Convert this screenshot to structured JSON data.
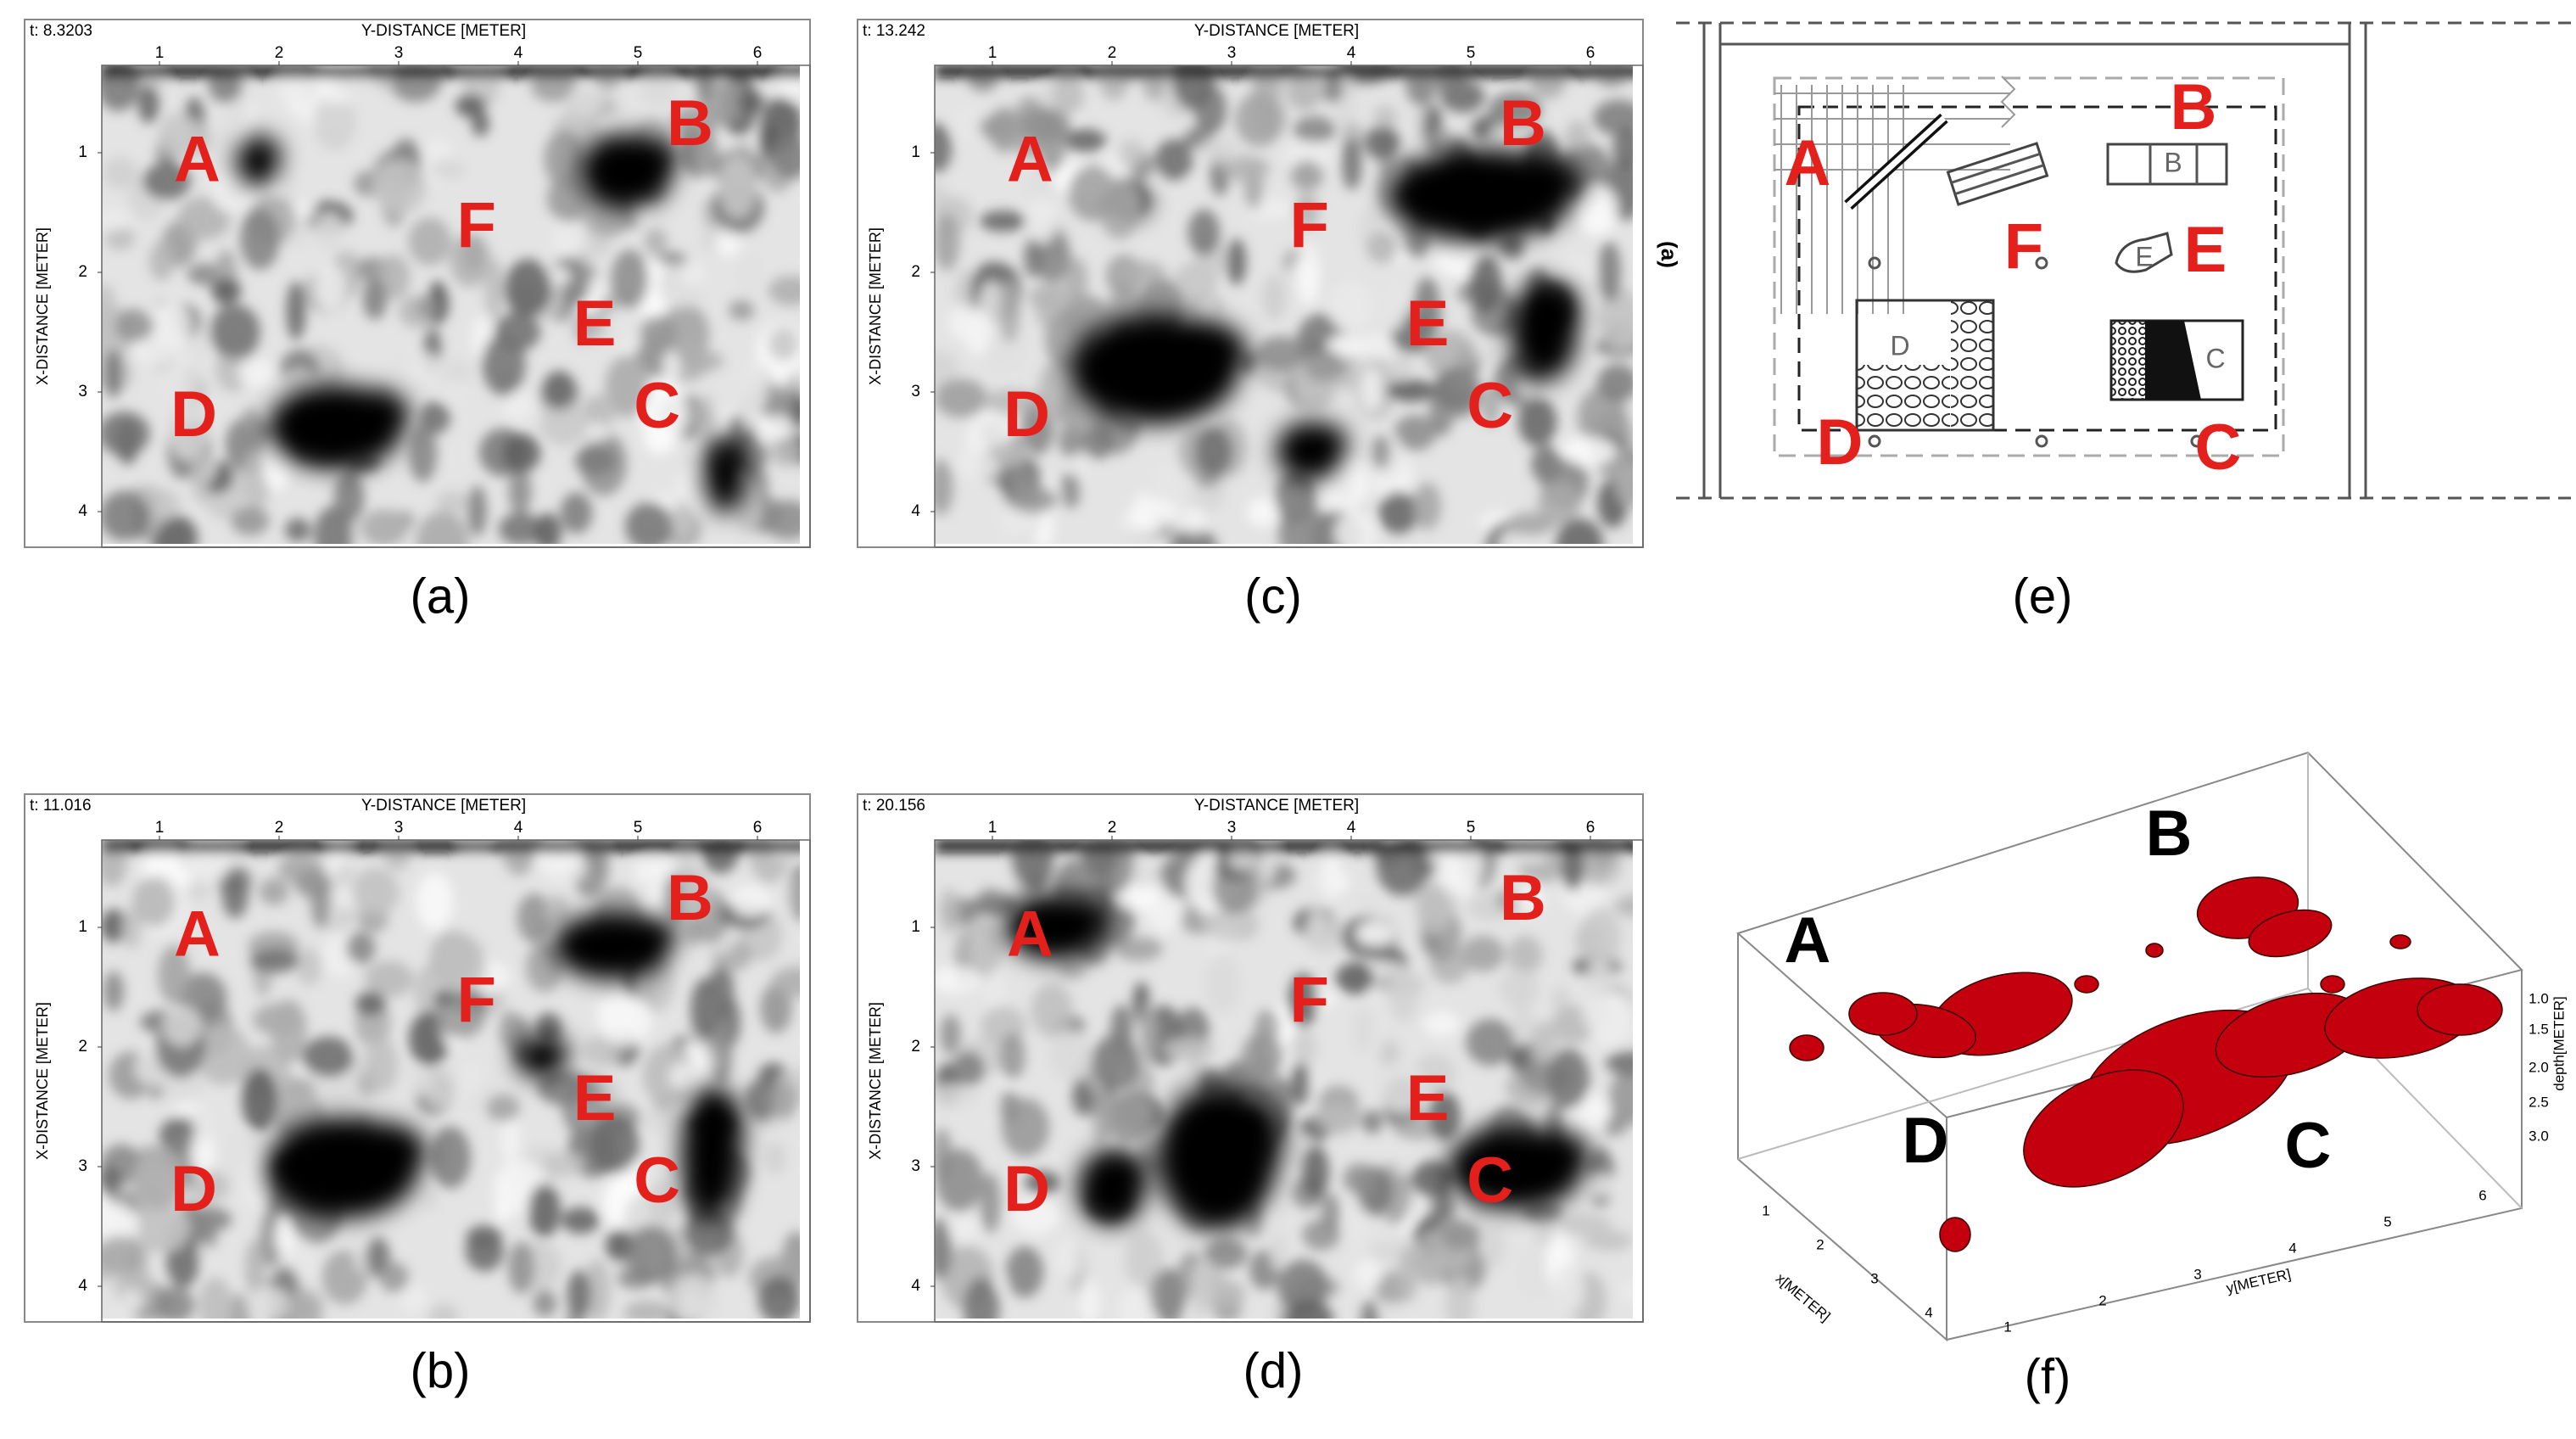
{
  "panels": [
    {
      "time": "t: 8.3203",
      "x_axis_title": "Y-DISTANCE [METER]",
      "y_axis_title": "X-DISTANCE [METER]",
      "x_ticks": [
        1,
        2,
        3,
        4,
        5,
        6
      ],
      "y_ticks": [
        1,
        2,
        3,
        4
      ],
      "labels": [
        "A",
        "B",
        "F",
        "E",
        "D",
        "C"
      ],
      "caption": "(a)"
    },
    {
      "time": "t: 11.016",
      "x_axis_title": "Y-DISTANCE [METER]",
      "y_axis_title": "X-DISTANCE [METER]",
      "x_ticks": [
        1,
        2,
        3,
        4,
        5,
        6
      ],
      "y_ticks": [
        1,
        2,
        3,
        4
      ],
      "labels": [
        "A",
        "B",
        "F",
        "E",
        "D",
        "C"
      ],
      "caption": "(b)"
    },
    {
      "time": "t: 13.242",
      "x_axis_title": "Y-DISTANCE [METER]",
      "y_axis_title": "X-DISTANCE [METER]",
      "x_ticks": [
        1,
        2,
        3,
        4,
        5,
        6
      ],
      "y_ticks": [
        1,
        2,
        3,
        4
      ],
      "labels": [
        "A",
        "B",
        "F",
        "E",
        "D",
        "C"
      ],
      "caption": "(c)"
    },
    {
      "time": "t: 20.156",
      "x_axis_title": "Y-DISTANCE [METER]",
      "y_axis_title": "X-DISTANCE [METER]",
      "x_ticks": [
        1,
        2,
        3,
        4,
        5,
        6
      ],
      "y_ticks": [
        1,
        2,
        3,
        4
      ],
      "labels": [
        "A",
        "B",
        "F",
        "E",
        "D",
        "C"
      ],
      "caption": "(d)"
    }
  ],
  "diagram": {
    "side_label": "(a)",
    "labels": [
      "A",
      "B",
      "F",
      "E",
      "D",
      "C"
    ],
    "inner_labels": [
      "B",
      "D",
      "C",
      "E"
    ],
    "caption": "(e)"
  },
  "volume": {
    "labels": [
      "A",
      "B",
      "D",
      "C"
    ],
    "x_axis_title": "x[METER]",
    "x_ticks": [
      1,
      2,
      3,
      4
    ],
    "y_axis_title": "y[METER]",
    "y_ticks": [
      1,
      2,
      3,
      4,
      5,
      6
    ],
    "z_axis_title": "depth[METER]",
    "z_ticks": [
      "1.0",
      "1.5",
      "2.0",
      "2.5",
      "3.0"
    ],
    "caption": "(f)"
  }
}
